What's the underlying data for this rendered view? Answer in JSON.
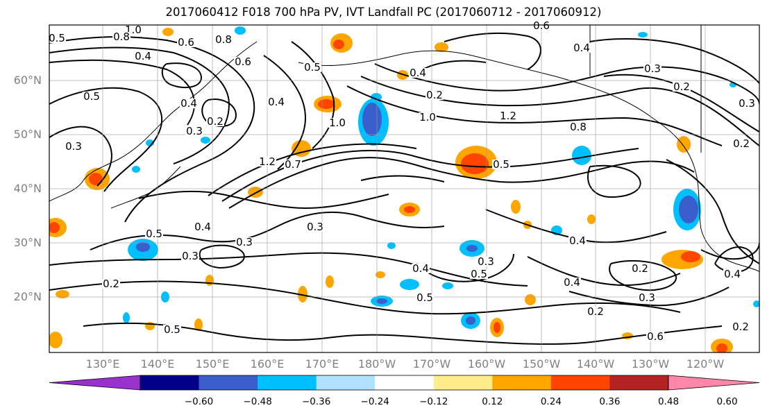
{
  "title": "2017060412 F018 700 hPa PV, IVT Landfall PC (2017060712 - 2017060912)",
  "map": {
    "latitude_labels": [
      "60°N",
      "50°N",
      "40°N",
      "30°N",
      "20°N"
    ],
    "longitude_labels": [
      "130°E",
      "140°E",
      "150°E",
      "160°E",
      "170°E",
      "180°W",
      "170°W",
      "160°W",
      "150°W",
      "140°W",
      "130°W",
      "120°W"
    ],
    "contour_labels": [
      "1.0",
      "0.8",
      "0.6",
      "0.4",
      "0.5",
      "0.8",
      "0.6",
      "0.6",
      "0.4",
      "0.3",
      "0.2",
      "0.5",
      "0.3",
      "0.4",
      "0.2",
      "0.3",
      "0.5",
      "0.4",
      "1.0",
      "1.2",
      "0.8",
      "1.0",
      "1.2",
      "0.7",
      "0.5",
      "0.2",
      "0.3",
      "0.4",
      "0.2",
      "0.4",
      "0.5",
      "0.3",
      "0.3",
      "0.4",
      "0.4",
      "0.3",
      "0.5",
      "0.2",
      "0.4",
      "0.2",
      "0.5",
      "0.3",
      "0.4",
      "0.2",
      "0.5",
      "0.6",
      "0.2",
      "0.3"
    ]
  },
  "colorbar": {
    "tick_labels": [
      "−0.60",
      "−0.48",
      "−0.36",
      "−0.24",
      "−0.12",
      "0.12",
      "0.24",
      "0.36",
      "0.48",
      "0.60"
    ],
    "colors": [
      "#9932cc",
      "#00008b",
      "#3a5fcd",
      "#00bfff",
      "#b0e2ff",
      "#ffffff",
      "#ffec8b",
      "#ffa500",
      "#ff4500",
      "#b22222",
      "#ff88aa"
    ]
  }
}
